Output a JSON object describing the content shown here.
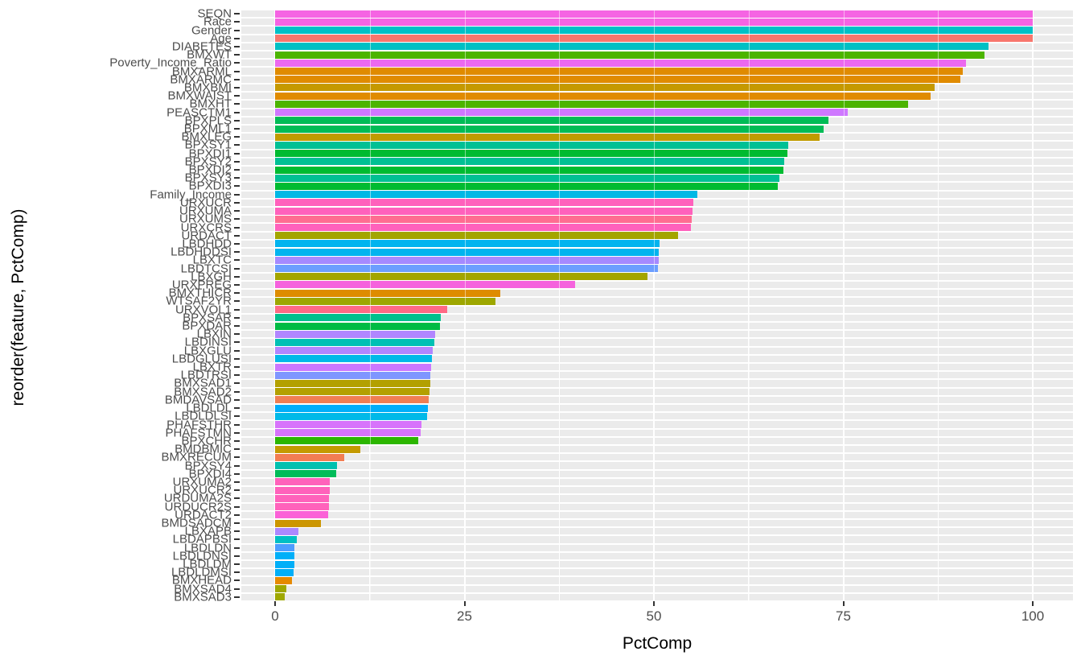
{
  "figure": {
    "panel_bg": "#EBEBEB",
    "grid_color": "#FFFFFF",
    "tick_color": "#333333",
    "axis_text_color": "#4D4D4D"
  },
  "chart_data": {
    "type": "bar",
    "orientation": "horizontal",
    "title": "",
    "xlabel": "PctComp",
    "ylabel": "reorder(feature, PctComp)",
    "xlim": [
      0,
      100
    ],
    "x_ticks": [
      0,
      25,
      50,
      75,
      100
    ],
    "grid": true,
    "legend": "none",
    "sort": "descending by PctComp",
    "categories": [
      "SEQN",
      "Race",
      "Gender",
      "Age",
      "DIABETES",
      "BMXWT",
      "Poverty_Income_Ratio",
      "BMXARML",
      "BMXARMC",
      "BMXBMI",
      "BMXWAIST",
      "BMXHT",
      "PEASCTM1",
      "BPXPLS",
      "BPXML1",
      "BMXLEG",
      "BPXSY1",
      "BPXDI1",
      "BPXSY2",
      "BPXDI2",
      "BPXSY3",
      "BPXDI3",
      "Family_Income",
      "URXUCR",
      "URXUMA",
      "URXUMS",
      "URXCRS",
      "URDACT",
      "LBDHDD",
      "LBDHDDSI",
      "LBXTC",
      "LBDTCSI",
      "LBXGH",
      "URXPREG",
      "BMXTHICR",
      "WTSAF2YR",
      "URXVOL1",
      "BPXSAR",
      "BPXDAR",
      "LBXIN",
      "LBDINSI",
      "LBXGLU",
      "LBDGLUSI",
      "LBXTR",
      "LBDTRSI",
      "BMXSAD1",
      "BMXSAD2",
      "BMDAVSAD",
      "LBDLDL",
      "LBDLDLSI",
      "PHAFSTHR",
      "PHAFSTMN",
      "BPXCHR",
      "BMDBMIC",
      "BMXRECUM",
      "BPXSY4",
      "BPXDI4",
      "URXUMA2",
      "URXUCR2",
      "URDUMA2S",
      "URDUCR2S",
      "URDACT2",
      "BMDSADCM",
      "LBXAPB",
      "LBDAPBSI",
      "LBDLDN",
      "LBDLDNSI",
      "LBDLDM",
      "LBDLDMSI",
      "BMXHEAD",
      "BMXSAD4",
      "BMXSAD3"
    ],
    "values": [
      100,
      100,
      100,
      100,
      94.2,
      93.6,
      91.2,
      90.8,
      90.4,
      87.1,
      86.5,
      83.5,
      75.6,
      73.0,
      72.4,
      71.9,
      67.7,
      67.6,
      67.2,
      67.1,
      66.6,
      66.4,
      55.7,
      55.2,
      55.1,
      55.0,
      54.9,
      53.2,
      50.7,
      50.6,
      50.6,
      50.5,
      49.1,
      39.6,
      29.7,
      29.1,
      22.7,
      21.9,
      21.8,
      21.1,
      21.0,
      20.8,
      20.7,
      20.6,
      20.5,
      20.5,
      20.4,
      20.3,
      20.2,
      20.1,
      19.3,
      19.2,
      18.9,
      11.3,
      9.1,
      8.2,
      8.1,
      7.2,
      7.2,
      7.1,
      7.1,
      7.0,
      6.1,
      3.1,
      2.9,
      2.6,
      2.5,
      2.5,
      2.4,
      2.2,
      1.5,
      1.3
    ],
    "colors": [
      "#F564E3",
      "#F564E3",
      "#00C1C6",
      "#F8766D",
      "#00C0C4",
      "#4CB400",
      "#EC69EF",
      "#E08B00",
      "#E08B00",
      "#C59900",
      "#E08B00",
      "#4CB400",
      "#CF78FF",
      "#00BC56",
      "#00BC56",
      "#C09B00",
      "#00C094",
      "#00BB31",
      "#00C094",
      "#00BB31",
      "#00C094",
      "#00BB31",
      "#00B8E5",
      "#FF61BC",
      "#FF61BC",
      "#FF6C91",
      "#FF61BC",
      "#A3A500",
      "#00B4EF",
      "#00B4EF",
      "#A58AFF",
      "#6C9EFF",
      "#A3A500",
      "#F562DD",
      "#DE8C00",
      "#9DA700",
      "#FF6A85",
      "#00C08D",
      "#00BB44",
      "#B186FF",
      "#00C0B4",
      "#B186FF",
      "#00B9E8",
      "#CB77FF",
      "#7F96FF",
      "#B3A000",
      "#B3A000",
      "#F07E53",
      "#00AEFA",
      "#00B9E8",
      "#D773FB",
      "#D773FB",
      "#2CB600",
      "#C49A00",
      "#F27D52",
      "#00C0AF",
      "#00BC59",
      "#FF62BB",
      "#FF62BB",
      "#FF62BB",
      "#FF62BB",
      "#FB61D7",
      "#CC9600",
      "#AC88FF",
      "#00BFC4",
      "#4C9DFF",
      "#00AFF8",
      "#00AFF8",
      "#00AFF8",
      "#E68A00",
      "#9FA800",
      "#9FA800"
    ]
  }
}
